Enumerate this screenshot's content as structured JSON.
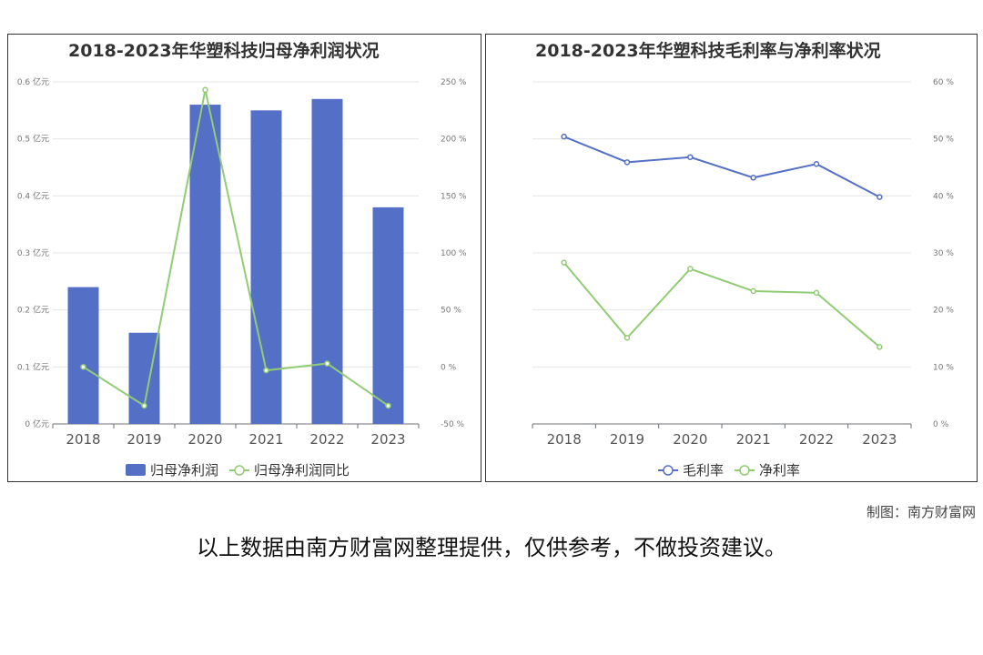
{
  "chart_data": [
    {
      "type": "bar+line",
      "title": "2018-2023年华塑科技归母净利润状况",
      "categories": [
        "2018",
        "2019",
        "2020",
        "2021",
        "2022",
        "2023"
      ],
      "series": [
        {
          "name": "归母净利润",
          "type": "bar",
          "axis": "left",
          "values": [
            0.24,
            0.16,
            0.56,
            0.55,
            0.57,
            0.38
          ],
          "color": "#5470c6"
        },
        {
          "name": "归母净利润同比",
          "type": "line",
          "axis": "right",
          "values": [
            0,
            -34,
            243,
            -3,
            3,
            -34
          ],
          "color": "#91cc75"
        }
      ],
      "left_axis": {
        "ylim": [
          0,
          0.6
        ],
        "ticks": [
          "0 亿元",
          "0.1 亿元",
          "0.2 亿元",
          "0.3 亿元",
          "0.4 亿元",
          "0.5 亿元",
          "0.6 亿元"
        ]
      },
      "right_axis": {
        "ylim": [
          -50,
          250
        ],
        "ticks": [
          "-50 %",
          "0 %",
          "50 %",
          "100 %",
          "150 %",
          "200 %",
          "250 %"
        ]
      },
      "grid": true,
      "legend": "bottom"
    },
    {
      "type": "line",
      "title": "2018-2023年华塑科技毛利率与净利率状况",
      "categories": [
        "2018",
        "2019",
        "2020",
        "2021",
        "2022",
        "2023"
      ],
      "series": [
        {
          "name": "毛利率",
          "values": [
            50.4,
            45.9,
            46.8,
            43.2,
            45.6,
            39.8
          ],
          "color": "#5470c6"
        },
        {
          "name": "净利率",
          "values": [
            28.3,
            15.1,
            27.2,
            23.3,
            23.0,
            13.5
          ],
          "color": "#91cc75"
        }
      ],
      "right_axis": {
        "ylim": [
          0,
          60
        ],
        "ticks": [
          "0 %",
          "10 %",
          "20 %",
          "30 %",
          "40 %",
          "50 %",
          "60 %"
        ]
      },
      "grid": true,
      "legend": "bottom"
    }
  ],
  "footer": {
    "credit": "制图：南方财富网",
    "disclaimer": "以上数据由南方财富网整理提供，仅供参考，不做投资建议。"
  }
}
